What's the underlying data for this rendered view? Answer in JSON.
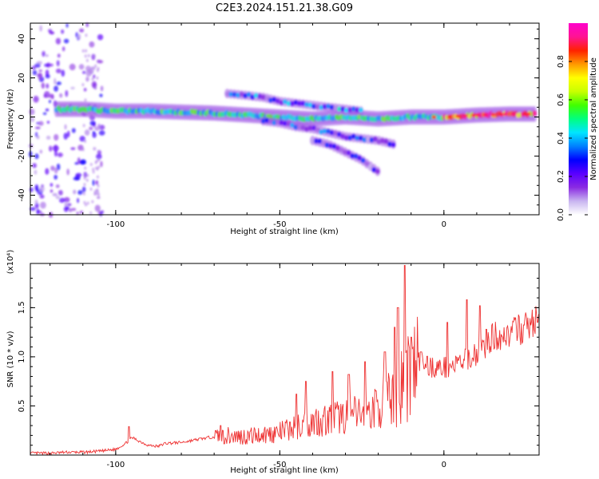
{
  "title": "C2E3.2024.151.21.38.G09",
  "chart_data": [
    {
      "type": "heatmap",
      "xlabel": "Height of straight line (km)",
      "ylabel": "Frequency (Hz)",
      "xlim": [
        -126,
        29
      ],
      "ylim": [
        -50,
        48
      ],
      "xticks": [
        -100,
        -50,
        0
      ],
      "yticks": [
        -40,
        -20,
        0,
        20,
        40
      ],
      "colorbar": {
        "label": "Normalized spectral amplitude",
        "range": [
          0,
          1
        ],
        "ticks": [
          "0.0",
          "0.2",
          "0.4",
          "0.6",
          "0.8"
        ],
        "colors": [
          "#ffffff",
          "#c8b4f0",
          "#8a2be2",
          "#5a00ff",
          "#0000ff",
          "#0080ff",
          "#00e5ff",
          "#00ff80",
          "#40ff00",
          "#c8ff00",
          "#ffff00",
          "#ff9900",
          "#ff2200",
          "#ff1493",
          "#ff00cc"
        ]
      },
      "ridges": [
        {
          "name": "main",
          "x": [
            -118,
            -110,
            -100,
            -90,
            -80,
            -70,
            -60,
            -50,
            -40,
            -30,
            -20,
            -10,
            0,
            10,
            20,
            28
          ],
          "y": [
            4,
            4,
            3,
            3,
            2.5,
            2,
            1,
            0,
            -1,
            0,
            -1,
            0,
            0,
            1,
            1.5,
            1.5
          ]
        },
        {
          "name": "upper",
          "x": [
            -66,
            -60,
            -55,
            -50,
            -45,
            -40,
            -35,
            -30,
            -25
          ],
          "y": [
            12,
            11,
            10,
            8,
            7,
            6,
            5,
            4,
            3
          ]
        },
        {
          "name": "lower",
          "x": [
            -55,
            -50,
            -45,
            -40,
            -35,
            -30,
            -25,
            -20,
            -15
          ],
          "y": [
            -2,
            -3,
            -5,
            -6,
            -8,
            -10,
            -11,
            -12,
            -14
          ]
        },
        {
          "name": "lowest",
          "x": [
            -40,
            -35,
            -30,
            -25,
            -20
          ],
          "y": [
            -12,
            -14,
            -18,
            -22,
            -28
          ]
        }
      ]
    },
    {
      "type": "line",
      "xlabel": "Height of straight line (km)",
      "ylabel": "SNR (10 * v/v)",
      "y_multiplier": "(x10⁴)",
      "xlim": [
        -126,
        29
      ],
      "ylim": [
        0,
        1.95
      ],
      "xticks": [
        -100,
        -50,
        0
      ],
      "yticks": [
        0.5,
        1.0,
        1.5
      ],
      "line_color": "#ee3333",
      "series": [
        {
          "x": [
            -126,
            -120,
            -115,
            -110,
            -105,
            -100,
            -97,
            -95,
            -92,
            -90,
            -87,
            -85,
            -80,
            -75,
            -70,
            -68,
            -65,
            -60,
            -55,
            -50,
            -45,
            -40,
            -35,
            -30,
            -25,
            -22,
            -20,
            -18,
            -15,
            -13,
            -12,
            -10,
            -8,
            -5,
            -3,
            0,
            3,
            7,
            10,
            13,
            15,
            20,
            25,
            29
          ],
          "y": [
            0.02,
            0.02,
            0.03,
            0.03,
            0.04,
            0.06,
            0.12,
            0.18,
            0.13,
            0.1,
            0.09,
            0.12,
            0.13,
            0.16,
            0.19,
            0.21,
            0.2,
            0.2,
            0.22,
            0.24,
            0.3,
            0.36,
            0.38,
            0.42,
            0.44,
            0.48,
            0.52,
            0.58,
            0.62,
            0.75,
            0.82,
            0.95,
            0.98,
            0.93,
            0.9,
            0.9,
            0.92,
            0.98,
            1.05,
            1.15,
            1.22,
            1.25,
            1.32,
            1.4
          ]
        }
      ],
      "peaks": [
        {
          "x": -96,
          "y": 0.29
        },
        {
          "x": -68,
          "y": 0.3
        },
        {
          "x": -45,
          "y": 0.62
        },
        {
          "x": -42,
          "y": 0.75
        },
        {
          "x": -34,
          "y": 0.85
        },
        {
          "x": -29,
          "y": 0.82
        },
        {
          "x": -24,
          "y": 0.95
        },
        {
          "x": -18,
          "y": 1.05
        },
        {
          "x": -15,
          "y": 1.3
        },
        {
          "x": -14,
          "y": 1.5
        },
        {
          "x": -12,
          "y": 1.93
        },
        {
          "x": -10,
          "y": 1.2
        },
        {
          "x": -7,
          "y": 1.05
        },
        {
          "x": 1,
          "y": 1.35
        },
        {
          "x": 7,
          "y": 1.58
        },
        {
          "x": 11,
          "y": 1.52
        },
        {
          "x": 13,
          "y": 1.28
        }
      ]
    }
  ]
}
